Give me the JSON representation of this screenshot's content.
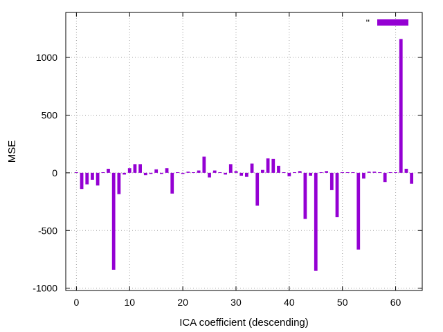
{
  "chart_data": {
    "type": "bar",
    "title": "",
    "xlabel": "ICA coefficient (descending)",
    "ylabel": "MSE",
    "xlim": [
      -2,
      65
    ],
    "ylim": [
      -1020,
      1390
    ],
    "xticks": [
      0,
      10,
      20,
      30,
      40,
      50,
      60
    ],
    "yticks": [
      -1000,
      -500,
      0,
      500,
      1000
    ],
    "grid": true,
    "legend_position": "top-right",
    "series": [
      {
        "name": "''",
        "color": "#9400d3",
        "x": [
          0,
          1,
          2,
          3,
          4,
          5,
          6,
          7,
          8,
          9,
          10,
          11,
          12,
          13,
          14,
          15,
          16,
          17,
          18,
          19,
          20,
          21,
          22,
          23,
          24,
          25,
          26,
          27,
          28,
          29,
          30,
          31,
          32,
          33,
          34,
          35,
          36,
          37,
          38,
          39,
          40,
          41,
          42,
          43,
          44,
          45,
          46,
          47,
          48,
          49,
          50,
          51,
          52,
          53,
          54,
          55,
          56,
          57,
          58,
          59,
          60,
          61,
          62,
          63
        ],
        "values": [
          5,
          -140,
          -100,
          -60,
          -110,
          5,
          35,
          -840,
          -185,
          -15,
          40,
          75,
          75,
          -20,
          -10,
          30,
          -10,
          40,
          -180,
          5,
          -10,
          10,
          5,
          20,
          140,
          -40,
          20,
          5,
          -15,
          75,
          15,
          -25,
          -35,
          80,
          -285,
          25,
          125,
          120,
          60,
          5,
          -30,
          5,
          15,
          -400,
          -25,
          -850,
          5,
          15,
          -150,
          -385,
          5,
          5,
          5,
          -665,
          -50,
          10,
          10,
          5,
          -80,
          5,
          5,
          1160,
          35,
          -95
        ]
      }
    ]
  }
}
